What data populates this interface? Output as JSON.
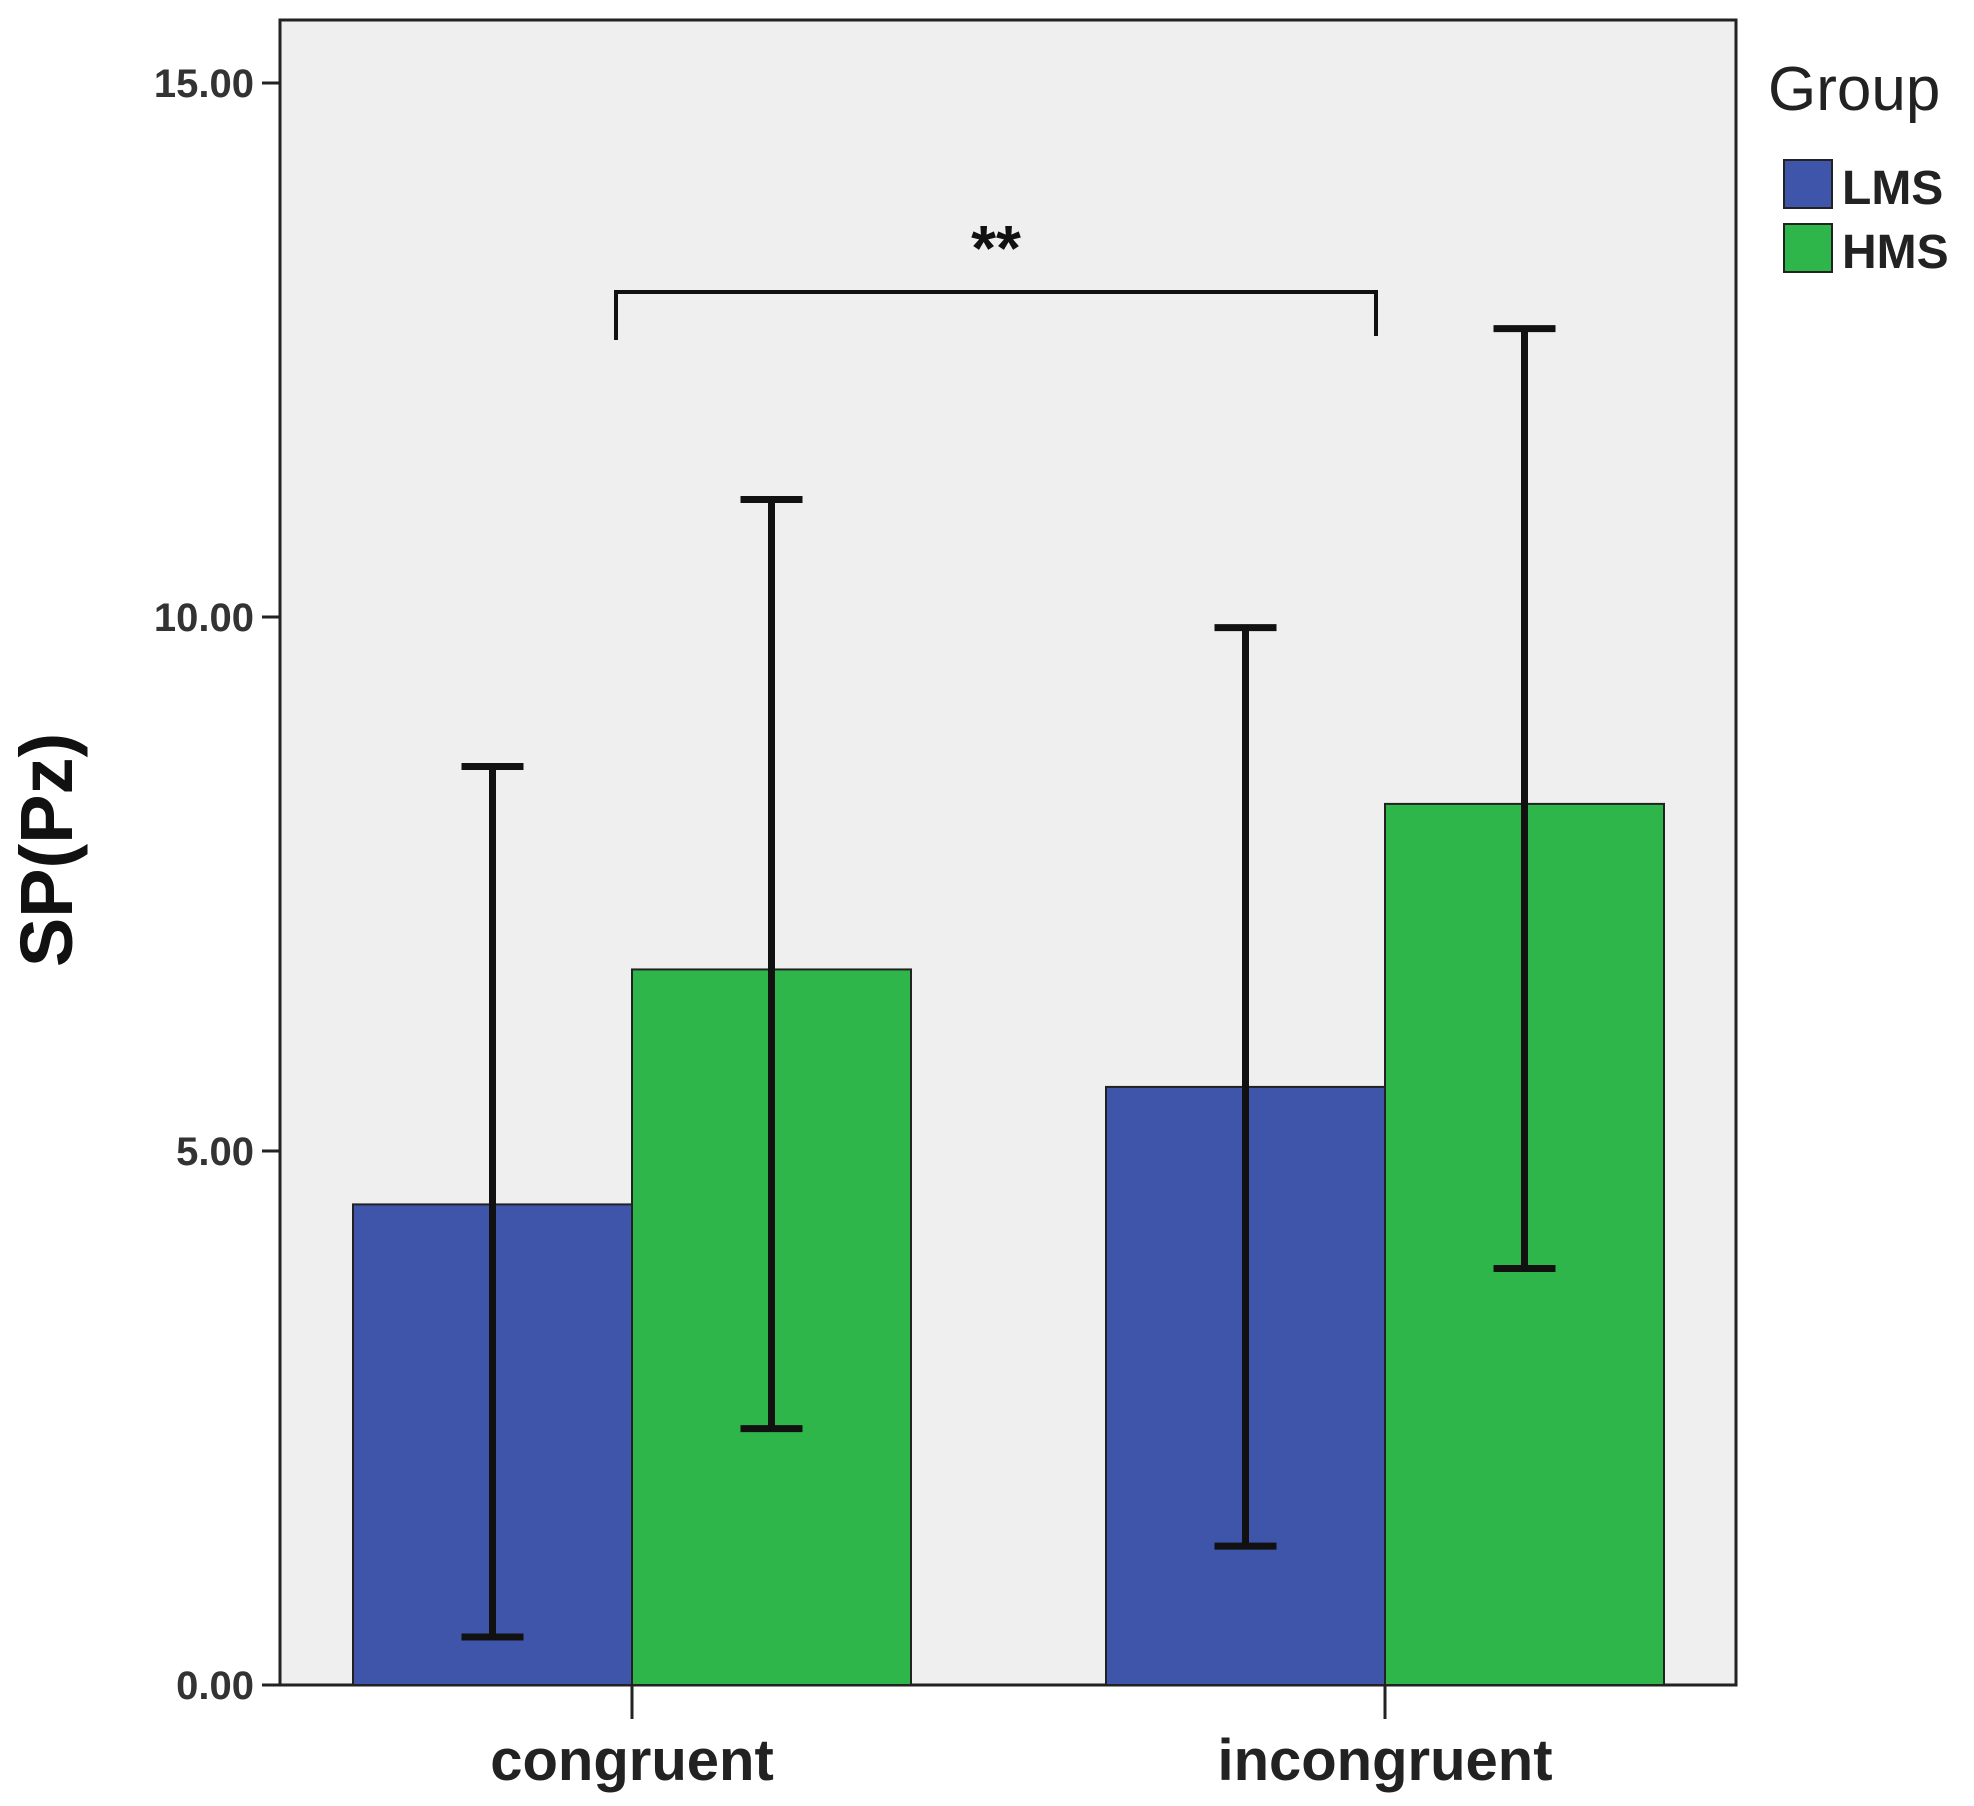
{
  "chart_data": {
    "type": "bar",
    "title": "",
    "xlabel": "",
    "ylabel": "SP(Pz)",
    "ylim": [
      0,
      15.5
    ],
    "yticks": [
      "0.00",
      "5.00",
      "10.00",
      "15.00"
    ],
    "ytick_values": [
      0,
      5,
      10,
      15
    ],
    "categories": [
      "congruent",
      "incongruent"
    ],
    "legend_title": "Group",
    "series": [
      {
        "name": "LMS",
        "color": "#3f55a9",
        "values": [
          4.5,
          5.6
        ],
        "err_low": [
          0.45,
          1.3
        ],
        "err_high": [
          8.6,
          9.9
        ]
      },
      {
        "name": "HMS",
        "color": "#2fb64a",
        "values": [
          6.7,
          8.25
        ],
        "err_low": [
          2.4,
          3.9
        ],
        "err_high": [
          11.1,
          12.7
        ]
      }
    ],
    "annotation": {
      "text": "**",
      "between": [
        "congruent",
        "incongruent"
      ],
      "y": 13.2
    },
    "plot_background": "#efefef"
  }
}
